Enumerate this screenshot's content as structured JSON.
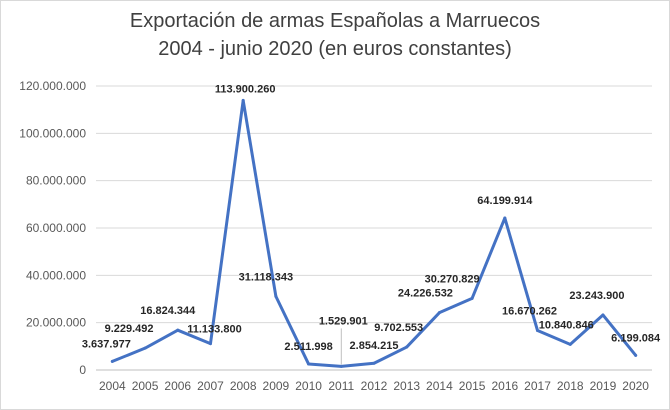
{
  "chart_data": {
    "type": "line",
    "title": "Exportación de armas Españolas a Marruecos",
    "subtitle": "2004 - junio 2020 (en euros constantes)",
    "xlabel": "",
    "ylabel": "",
    "categories": [
      "2004",
      "2005",
      "2006",
      "2007",
      "2008",
      "2009",
      "2010",
      "2011",
      "2012",
      "2013",
      "2014",
      "2015",
      "2016",
      "2017",
      "2018",
      "2019",
      "2020"
    ],
    "values": [
      3637977,
      9229492,
      16824344,
      11133800,
      113900260,
      31118343,
      2511998,
      1529901,
      2854215,
      9702553,
      24226532,
      30270829,
      64199914,
      16670262,
      10840846,
      23243900,
      6199084
    ],
    "data_labels": [
      "3.637.977",
      "9.229.492",
      "16.824.344",
      "11.133.800",
      "113.900.260",
      "31.118.343",
      "2.511.998",
      "1.529.901",
      "2.854.215",
      "9.702.553",
      "24.226.532",
      "30.270.829",
      "64.199.914",
      "16.670.262",
      "10.840.846",
      "23.243.900",
      "6.199.084"
    ],
    "y_ticks": [
      0,
      20000000,
      40000000,
      60000000,
      80000000,
      100000000,
      120000000
    ],
    "y_tick_labels": [
      "0",
      "20.000.000",
      "40.000.000",
      "60.000.000",
      "80.000.000",
      "100.000.000",
      "120.000.000"
    ],
    "ylim": [
      0,
      120000000
    ],
    "grid": true,
    "legend": "none",
    "colors": {
      "line": "#4472c4",
      "grid": "#d9d9d9",
      "axis": "#bfbfbf"
    }
  }
}
